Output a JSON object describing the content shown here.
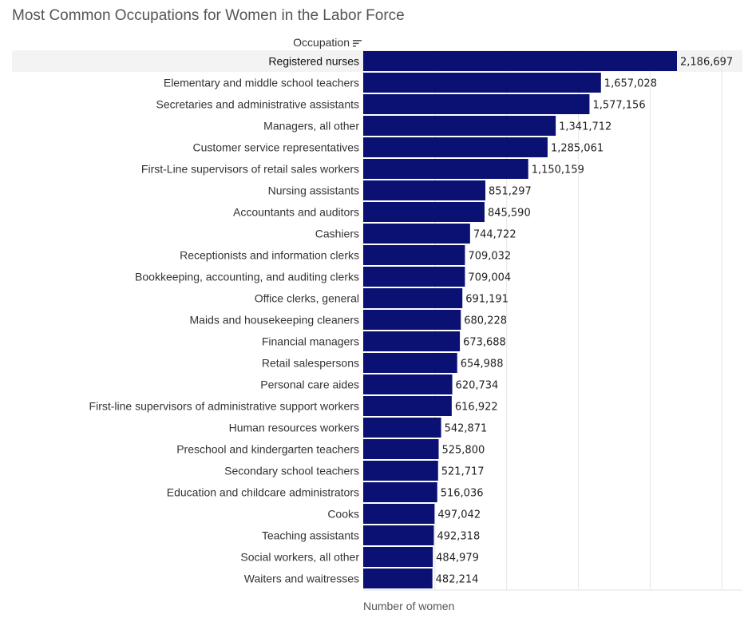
{
  "page": {
    "title": "Most Common Occupations for Women in the Labor Force",
    "column_header": "Occupation",
    "sort_icon": "sort-descending-icon"
  },
  "chart_data": {
    "type": "bar",
    "orientation": "horizontal",
    "title": "Most Common Occupations for Women in the Labor Force",
    "ylabel": "Occupation",
    "xlabel": "Number of women",
    "xlim": [
      0,
      2500000
    ],
    "grid": true,
    "bar_color": "#0a1172",
    "highlight_color": "#f3f3f3",
    "highlighted_category": "Registered nurses",
    "categories": [
      "Registered nurses",
      "Elementary and middle school teachers",
      "Secretaries and administrative assistants",
      "Managers, all other",
      "Customer service representatives",
      "First-Line supervisors of retail sales workers",
      "Nursing assistants",
      "Accountants and auditors",
      "Cashiers",
      "Receptionists and information clerks",
      "Bookkeeping, accounting, and auditing clerks",
      "Office clerks, general",
      "Maids and housekeeping cleaners",
      "Financial managers",
      "Retail salespersons",
      "Personal care aides",
      "First-line supervisors of administrative support workers",
      "Human resources workers",
      "Preschool and kindergarten teachers",
      "Secondary school teachers",
      "Education and childcare administrators",
      "Cooks",
      "Teaching assistants",
      "Social workers, all other",
      "Waiters and waitresses"
    ],
    "values": [
      2186697,
      1657028,
      1577156,
      1341712,
      1285061,
      1150159,
      851297,
      845590,
      744722,
      709032,
      709004,
      691191,
      680228,
      673688,
      654988,
      620734,
      616922,
      542871,
      525800,
      521717,
      516036,
      497042,
      492318,
      484979,
      482214
    ],
    "value_labels": [
      "2,186,697",
      "1,657,028",
      "1,577,156",
      "1,341,712",
      "1,285,061",
      "1,150,159",
      "851,297",
      "845,590",
      "744,722",
      "709,032",
      "709,004",
      "691,191",
      "680,228",
      "673,688",
      "654,988",
      "620,734",
      "616,922",
      "542,871",
      "525,800",
      "521,717",
      "516,036",
      "497,042",
      "492,318",
      "484,979",
      "482,214"
    ]
  }
}
